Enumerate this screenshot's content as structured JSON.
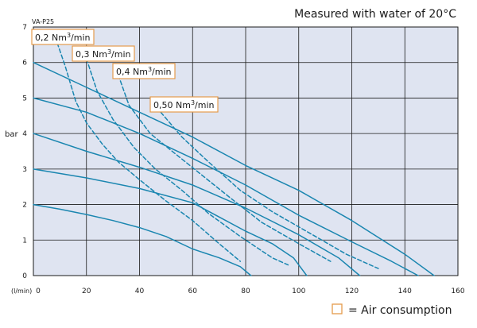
{
  "chart_data": {
    "type": "line",
    "title": "Measured with water of 20°C",
    "model": "VA-P25",
    "ylabel": "bar",
    "xlabel": "(l/min)",
    "xlim": [
      0,
      160
    ],
    "ylim": [
      0,
      7
    ],
    "x_ticks": [
      "0",
      "20",
      "40",
      "60",
      "80",
      "100",
      "120",
      "140",
      "160"
    ],
    "y_ticks": [
      "0",
      "1",
      "2",
      "3",
      "4",
      "5",
      "6",
      "7"
    ],
    "grid": true,
    "colors": {
      "plot_bg": "#dfe4f1",
      "curve": "#1a86b0",
      "grid": "#1a1a1a",
      "box_border": "#e59b4c"
    },
    "legend": {
      "text": "= Air consumption",
      "position": "bottom-right"
    },
    "air_labels": [
      {
        "base": "0,2 Nm",
        "sup": "3",
        "tail": "/min"
      },
      {
        "base": "0,3 Nm",
        "sup": "3",
        "tail": "/min"
      },
      {
        "base": "0,4 Nm",
        "sup": "3",
        "tail": "/min"
      },
      {
        "base": "0,50 Nm",
        "sup": "3",
        "tail": "/min"
      }
    ],
    "series": [
      {
        "kind": "pressure",
        "inlet_bar": 2,
        "points": [
          [
            0,
            2
          ],
          [
            10,
            1.87
          ],
          [
            20,
            1.72
          ],
          [
            30,
            1.55
          ],
          [
            40,
            1.35
          ],
          [
            50,
            1.1
          ],
          [
            60,
            0.75
          ],
          [
            70,
            0.5
          ],
          [
            78,
            0.25
          ],
          [
            82,
            0
          ]
        ]
      },
      {
        "kind": "pressure",
        "inlet_bar": 3,
        "points": [
          [
            0,
            3
          ],
          [
            20,
            2.75
          ],
          [
            40,
            2.45
          ],
          [
            60,
            2.05
          ],
          [
            70,
            1.65
          ],
          [
            80,
            1.25
          ],
          [
            90,
            0.9
          ],
          [
            98,
            0.5
          ],
          [
            103,
            0
          ]
        ]
      },
      {
        "kind": "pressure",
        "inlet_bar": 4,
        "points": [
          [
            0,
            4
          ],
          [
            20,
            3.5
          ],
          [
            40,
            3.05
          ],
          [
            60,
            2.55
          ],
          [
            80,
            1.9
          ],
          [
            100,
            1.15
          ],
          [
            115,
            0.5
          ],
          [
            123,
            0
          ]
        ]
      },
      {
        "kind": "pressure",
        "inlet_bar": 5,
        "points": [
          [
            0,
            5
          ],
          [
            20,
            4.6
          ],
          [
            40,
            4.0
          ],
          [
            60,
            3.3
          ],
          [
            80,
            2.55
          ],
          [
            100,
            1.7
          ],
          [
            120,
            0.95
          ],
          [
            135,
            0.4
          ],
          [
            145,
            0
          ]
        ]
      },
      {
        "kind": "pressure",
        "inlet_bar": 6,
        "points": [
          [
            0,
            6
          ],
          [
            20,
            5.3
          ],
          [
            40,
            4.6
          ],
          [
            60,
            3.9
          ],
          [
            80,
            3.1
          ],
          [
            100,
            2.4
          ],
          [
            120,
            1.55
          ],
          [
            140,
            0.6
          ],
          [
            151,
            0
          ]
        ]
      },
      {
        "kind": "air",
        "air_label": 0,
        "points": [
          [
            9,
            6.55
          ],
          [
            12,
            5.9
          ],
          [
            16,
            4.9
          ],
          [
            20,
            4.3
          ],
          [
            26,
            3.7
          ],
          [
            32,
            3.2
          ],
          [
            40,
            2.7
          ],
          [
            50,
            2.1
          ],
          [
            60,
            1.55
          ],
          [
            70,
            0.9
          ],
          [
            78,
            0.4
          ]
        ]
      },
      {
        "kind": "air",
        "air_label": 1,
        "points": [
          [
            20,
            6.1
          ],
          [
            24,
            5.2
          ],
          [
            30,
            4.4
          ],
          [
            38,
            3.6
          ],
          [
            46,
            3.0
          ],
          [
            56,
            2.4
          ],
          [
            66,
            1.75
          ],
          [
            78,
            1.1
          ],
          [
            90,
            0.5
          ],
          [
            96,
            0.3
          ]
        ]
      },
      {
        "kind": "air",
        "air_label": 2,
        "points": [
          [
            32,
            5.65
          ],
          [
            36,
            4.8
          ],
          [
            44,
            4.0
          ],
          [
            54,
            3.4
          ],
          [
            64,
            2.8
          ],
          [
            74,
            2.2
          ],
          [
            86,
            1.5
          ],
          [
            100,
            0.9
          ],
          [
            112,
            0.4
          ]
        ]
      },
      {
        "kind": "air",
        "air_label": 3,
        "points": [
          [
            48,
            4.6
          ],
          [
            56,
            3.9
          ],
          [
            66,
            3.2
          ],
          [
            78,
            2.4
          ],
          [
            90,
            1.8
          ],
          [
            104,
            1.2
          ],
          [
            118,
            0.6
          ],
          [
            130,
            0.2
          ]
        ]
      }
    ]
  }
}
